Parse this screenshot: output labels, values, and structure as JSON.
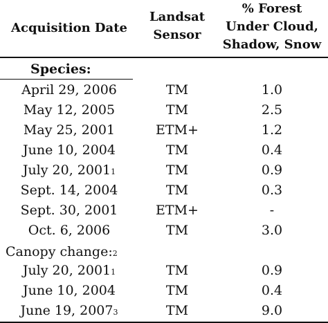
{
  "table": {
    "headers": {
      "date": "Acquisition Date",
      "sensor_line1": "Landsat",
      "sensor_line2": "Sensor",
      "forest_line1": "% Forest",
      "forest_line2": "Under Cloud,",
      "forest_line3": "Shadow, Snow"
    },
    "sections": [
      {
        "label": "Species:",
        "label_sup": "",
        "rows": [
          {
            "date": "April 29, 2006",
            "sup": "",
            "sensor": "TM",
            "pct": "1.0"
          },
          {
            "date": "May 12, 2005",
            "sup": "",
            "sensor": "TM",
            "pct": "2.5"
          },
          {
            "date": "May 25, 2001",
            "sup": "",
            "sensor": "ETM+",
            "pct": "1.2"
          },
          {
            "date": "June 10, 2004",
            "sup": "",
            "sensor": "TM",
            "pct": "0.4"
          },
          {
            "date": "July 20, 2001",
            "sup": "1",
            "sensor": "TM",
            "pct": "0.9"
          },
          {
            "date": "Sept. 14, 2004",
            "sup": "",
            "sensor": "TM",
            "pct": "0.3"
          },
          {
            "date": "Sept. 30, 2001",
            "sup": "",
            "sensor": "ETM+",
            "pct": "-"
          },
          {
            "date": "Oct. 6, 2006",
            "sup": "",
            "sensor": "TM",
            "pct": "3.0"
          }
        ]
      },
      {
        "label": "Canopy change:",
        "label_sup": "2",
        "rows": [
          {
            "date": "July 20, 2001",
            "sup": "1",
            "sensor": "TM",
            "pct": "0.9"
          },
          {
            "date": "June 10, 2004",
            "sup": "",
            "sensor": "TM",
            "pct": "0.4"
          },
          {
            "date": "June 19, 2007",
            "sup": "3",
            "sensor": "TM",
            "pct": "9.0"
          }
        ]
      }
    ]
  }
}
